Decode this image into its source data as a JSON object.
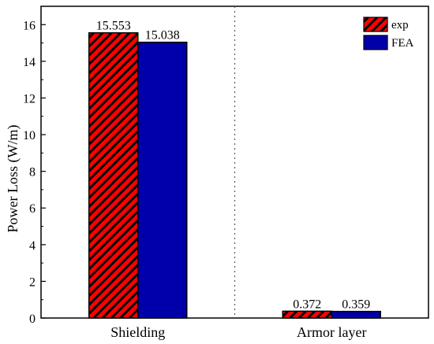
{
  "chart_data": {
    "type": "bar",
    "categories": [
      "Shielding",
      "Armor layer"
    ],
    "series": [
      {
        "name": "exp",
        "values": [
          15.553,
          0.372
        ],
        "labels": [
          "15.553",
          "0.372"
        ],
        "color": "#ff0000",
        "pattern": "hatched-diagonal"
      },
      {
        "name": "FEA",
        "values": [
          15.038,
          0.359
        ],
        "labels": [
          "15.038",
          "0.359"
        ],
        "color": "#0000aa",
        "pattern": "solid"
      }
    ],
    "xlabel": "",
    "ylabel": "Power Loss (W/m)",
    "ylim": [
      0,
      17
    ],
    "yticks": [
      0,
      2,
      4,
      6,
      8,
      10,
      12,
      14,
      16
    ],
    "ytick_labels": [
      "0",
      "2",
      "4",
      "6",
      "8",
      "10",
      "12",
      "14",
      "16"
    ],
    "grid": false,
    "category_separator": "dotted-vertical",
    "legend_position": "top-right"
  }
}
